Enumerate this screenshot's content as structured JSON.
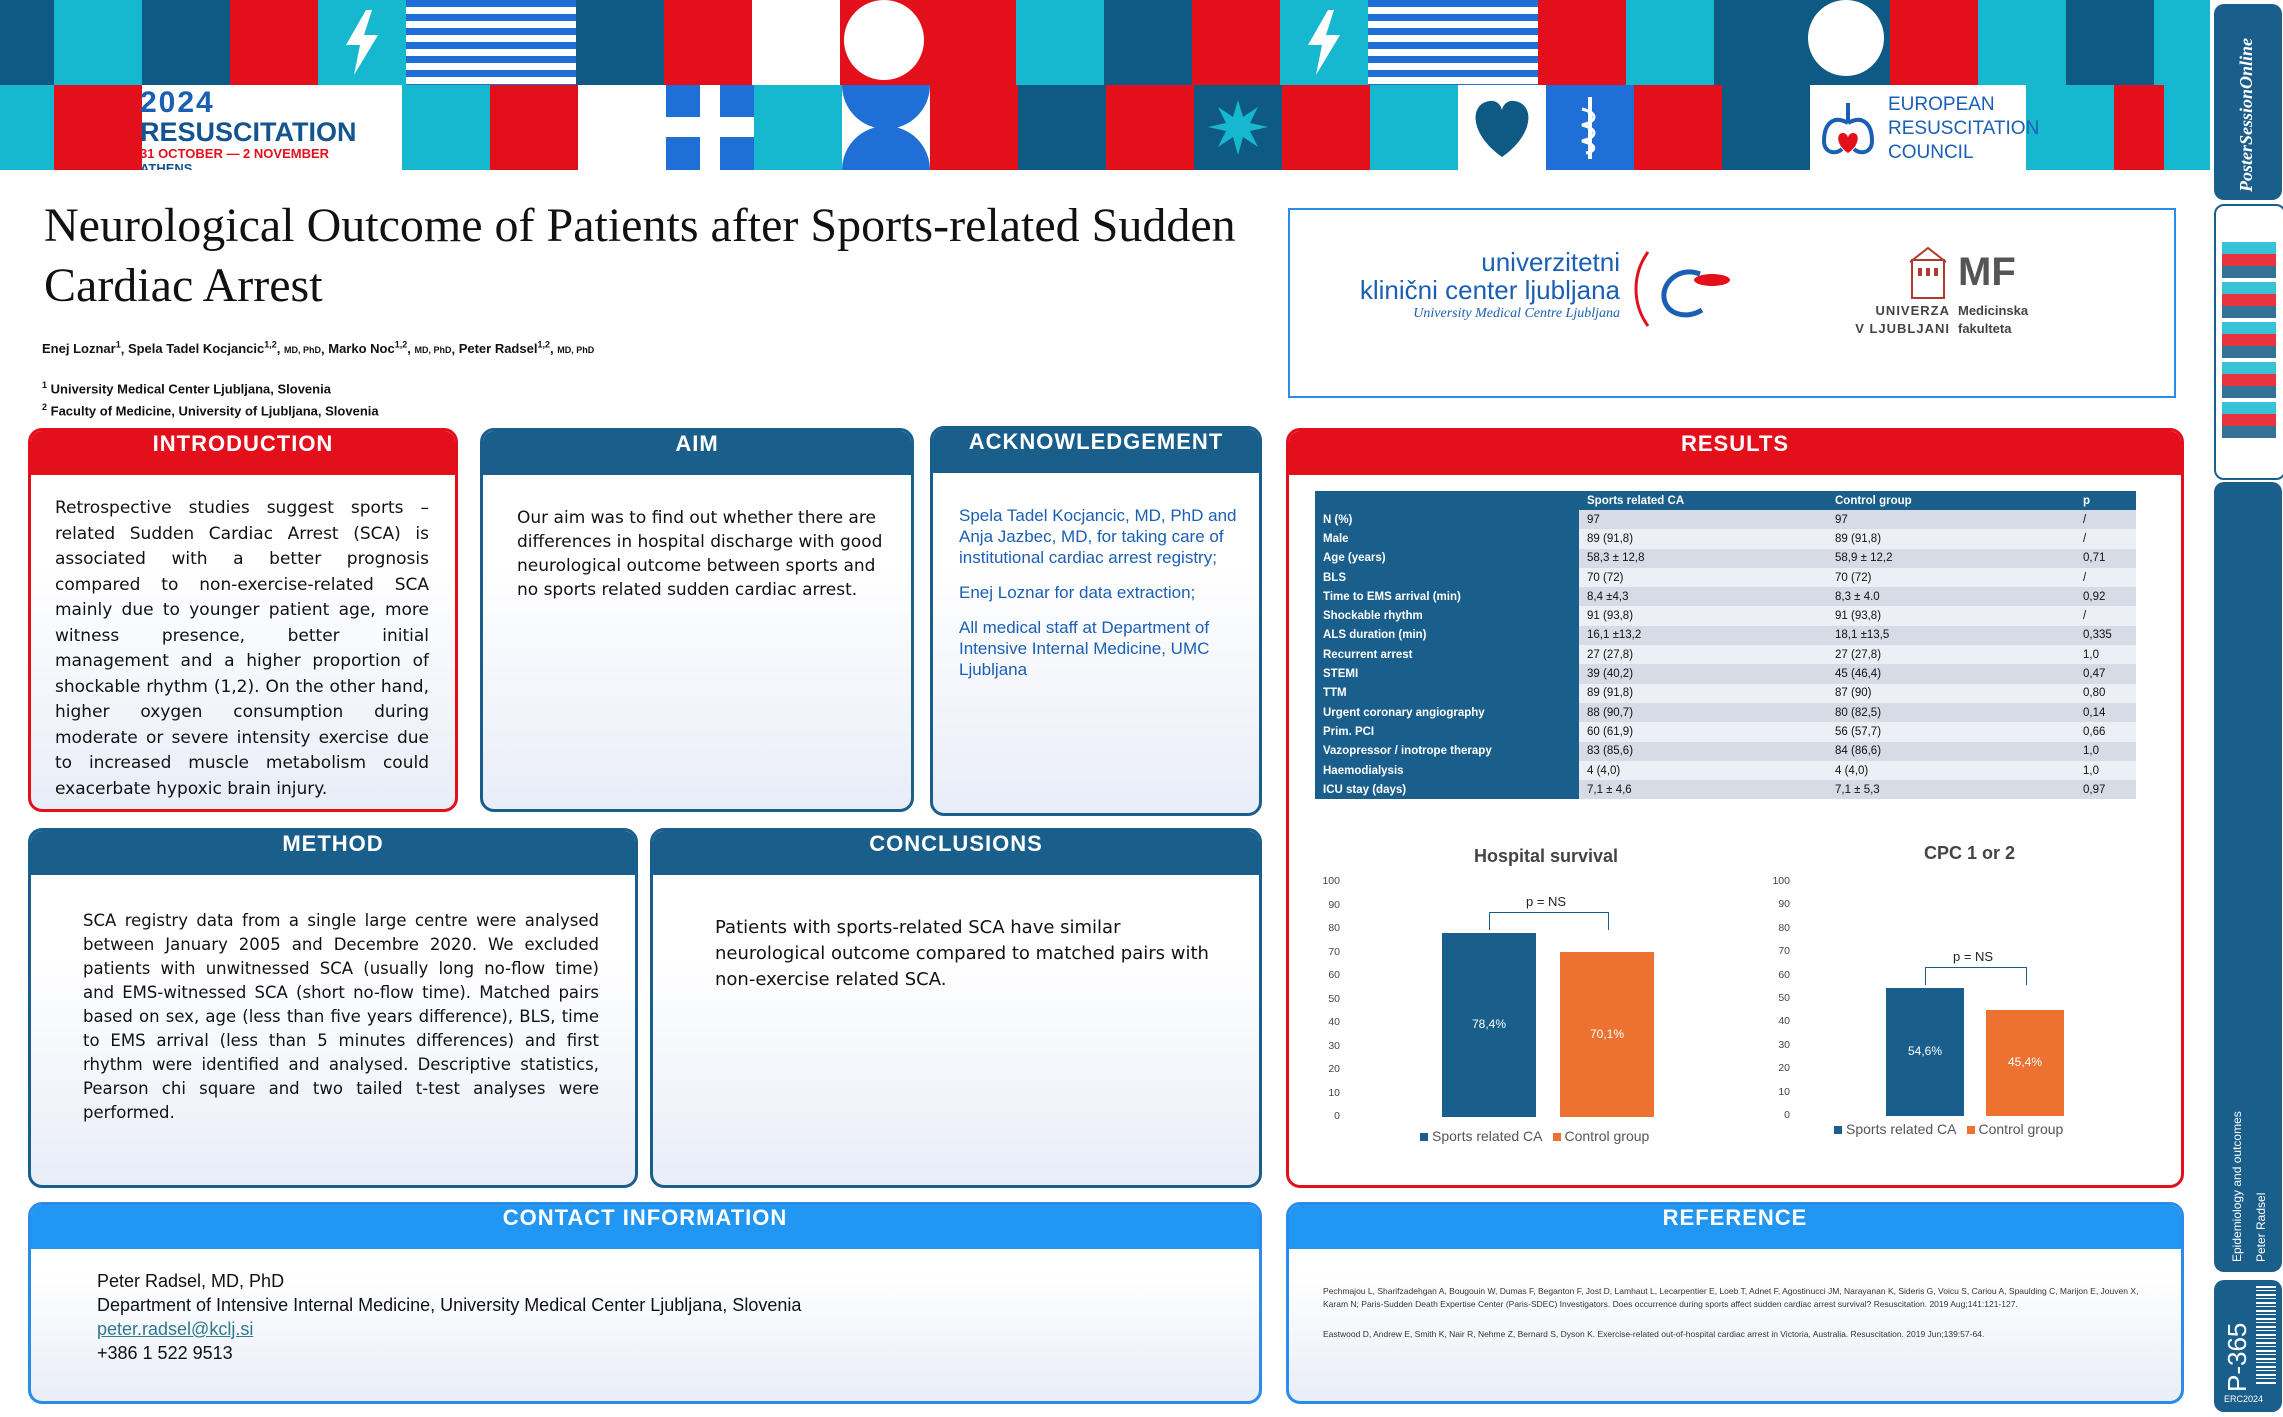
{
  "conference": {
    "year": "2024",
    "name": "RESUSCITATION",
    "dates": "31 OCTOBER — 2 NOVEMBER",
    "city": "ATHENS"
  },
  "erc": {
    "line1": "EUROPEAN",
    "line2": "RESUSCITATION",
    "line3": "COUNCIL"
  },
  "side": {
    "brand": "PosterSessionOnline",
    "topic": "Epidemiology and outcomes",
    "author": "Peter Radsel",
    "poster_id": "P-365",
    "event": "ERC2024"
  },
  "title": "Neurological Outcome of Patients after Sports-related Sudden Cardiac Arrest",
  "authors": [
    {
      "name": "Enej Loznar",
      "sup": "1",
      "deg": ""
    },
    {
      "name": "Spela Tadel Kocjancic",
      "sup": "1,2",
      "deg": "MD, PhD"
    },
    {
      "name": "Marko Noc",
      "sup": "1,2",
      "deg": "MD, PhD"
    },
    {
      "name": "Peter Radsel",
      "sup": "1,2",
      "deg": "MD, PhD"
    }
  ],
  "affiliations": [
    {
      "sup": "1",
      "text": "University Medical Center Ljubljana, Slovenia"
    },
    {
      "sup": "2",
      "text": "Faculty of Medicine, University of Ljubljana, Slovenia"
    }
  ],
  "institutions": {
    "ukc_line1": "univerzitetni",
    "ukc_line2": "klinični center ljubljana",
    "ukc_line3": "University Medical Centre Ljubljana",
    "mf_abbr": "MF",
    "mf_l1": "UNIVERZA",
    "mf_l2": "V LJUBLJANI",
    "mf_r1": "Medicinska",
    "mf_r2": "fakulteta"
  },
  "introduction": {
    "heading": "INTRODUCTION",
    "text": "Retrospective studies suggest sports – related Sudden Cardiac Arrest (SCA) is associated with a better prognosis compared to non-exercise-related SCA  mainly due to younger patient age, more witness presence, better initial management and a higher proportion of shockable rhythm (1,2). On the other hand, higher oxygen consumption during moderate or severe intensity exercise due to increased muscle metabolism could exacerbate hypoxic brain injury."
  },
  "aim": {
    "heading": "AIM",
    "text": "Our aim was to find out whether there are differences in hospital discharge with good neurological outcome between sports and no sports related sudden cardiac arrest."
  },
  "acknowledgement": {
    "heading": "ACKNOWLEDGEMENT",
    "paragraphs": [
      "Spela Tadel Kocjancic, MD, PhD and Anja Jazbec, MD, for taking care of institutional cardiac arrest registry;",
      "Enej Loznar for data extraction;",
      "All medical staff at Department of Intensive Internal Medicine, UMC Ljubljana"
    ]
  },
  "method": {
    "heading": "METHOD",
    "text": "SCA registry data from a single large centre were analysed between January 2005 and Decembre 2020. We excluded patients with unwitnessed SCA (usually long no-flow time) and EMS-witnessed SCA (short no-flow time). Matched pairs based on sex, age (less than five years difference), BLS, time to EMS arrival (less than 5 minutes differences) and first rhythm were identified and analysed.  Descriptive statistics, Pearson chi square and two tailed t-test analyses were performed."
  },
  "conclusions": {
    "heading": "CONCLUSIONS",
    "text": "Patients with sports-related SCA have similar neurological outcome compared to matched pairs with non-exercise related SCA."
  },
  "contact": {
    "heading": "CONTACT INFORMATION",
    "name": "Peter Radsel, MD, PhD",
    "dept": "Department of Intensive Internal Medicine, University Medical Center Ljubljana, Slovenia",
    "email": "peter.radsel@kclj.si",
    "phone": "+386 1 522 9513"
  },
  "reference": {
    "heading": "REFERENCE",
    "items": [
      "Pechmajou L, Sharifzadehgan A, Bougouin W, Dumas F, Beganton F, Jost D, Lamhaut L, Lecarpentier E, Loeb T, Adnet F, Agostinucci JM, Narayanan K, Sideris G, Voicu S, Cariou A, Spaulding C, Marijon E, Jouven X, Karam N; Paris-Sudden Death Expertise Center (Paris-SDEC) Investigators. Does occurrence during sports affect sudden cardiac arrest survival? Resuscitation. 2019 Aug;141:121-127.",
      "Eastwood D, Andrew E, Smith K, Nair R, Nehme Z, Bernard S, Dyson K. Exercise-related out-of-hospital cardiac arrest in Victoria, Australia. Resuscitation. 2019 Jun;139:57-64."
    ]
  },
  "results": {
    "heading": "RESULTS",
    "table": {
      "headers": [
        "",
        "Sports related CA",
        "Control group",
        "p"
      ],
      "rows": [
        [
          "N (%)",
          "97",
          "97",
          "/"
        ],
        [
          "Male",
          "89 (91,8)",
          "89 (91,8)",
          "/"
        ],
        [
          "Age (years)",
          "58,3 ± 12,8",
          "58,9 ± 12,2",
          "0,71"
        ],
        [
          "BLS",
          "70 (72)",
          "70 (72)",
          "/"
        ],
        [
          "Time to EMS arrival (min)",
          "8,4 ±4,3",
          "8,3 ± 4.0",
          "0,92"
        ],
        [
          "Shockable rhythm",
          "91 (93,8)",
          "91 (93,8)",
          "/"
        ],
        [
          "ALS duration (min)",
          "16,1 ±13,2",
          "18,1 ±13,5",
          "0,335"
        ],
        [
          "Recurrent arrest",
          "27 (27,8)",
          "27 (27,8)",
          "1,0"
        ],
        [
          "STEMI",
          "39 (40,2)",
          "45 (46,4)",
          "0,47"
        ],
        [
          "TTM",
          "89 (91,8)",
          "87 (90)",
          "0,80"
        ],
        [
          "Urgent coronary angiography",
          "88 (90,7)",
          "80 (82,5)",
          "0,14"
        ],
        [
          "Prim. PCI",
          "60 (61,9)",
          "56 (57,7)",
          "0,66"
        ],
        [
          "Vazopressor / inotrope therapy",
          "83 (85,6)",
          "84 (86,6)",
          "1,0"
        ],
        [
          "Haemodialysis",
          "4 (4,0)",
          "4 (4,0)",
          "1,0"
        ],
        [
          "ICU stay (days)",
          "7,1 ± 4,6",
          "7,1 ± 5,3",
          "0,97"
        ]
      ]
    }
  },
  "chart_data": [
    {
      "type": "bar",
      "title": "Hospital survival",
      "categories": [
        "Sports related CA",
        "Control group"
      ],
      "values": [
        78.4,
        70.1
      ],
      "data_labels": [
        "78,4%",
        "70,1%"
      ],
      "colors": [
        "#1a5e8c",
        "#ed7232"
      ],
      "ylim": [
        0,
        100
      ],
      "yticks": [
        "0",
        "10",
        "20",
        "30",
        "40",
        "50",
        "60",
        "70",
        "80",
        "90",
        "100"
      ],
      "annotation": "p = NS",
      "legend": [
        "Sports related CA",
        "Control group"
      ]
    },
    {
      "type": "bar",
      "title": "CPC 1 or 2",
      "categories": [
        "Sports related CA",
        "Control group"
      ],
      "values": [
        54.6,
        45.4
      ],
      "data_labels": [
        "54,6%",
        "45,4%"
      ],
      "colors": [
        "#1a5e8c",
        "#ed7232"
      ],
      "ylim": [
        0,
        100
      ],
      "yticks": [
        "0",
        "10",
        "20",
        "30",
        "40",
        "50",
        "60",
        "70",
        "80",
        "90",
        "100"
      ],
      "annotation": "p = NS",
      "legend": [
        "Sports related CA",
        "Control group"
      ]
    }
  ],
  "colors": {
    "navy": "#1a5e8c",
    "red": "#e3101c",
    "cyan": "#16b8cf",
    "blue": "#1f6fd6",
    "orange": "#ed7232"
  }
}
